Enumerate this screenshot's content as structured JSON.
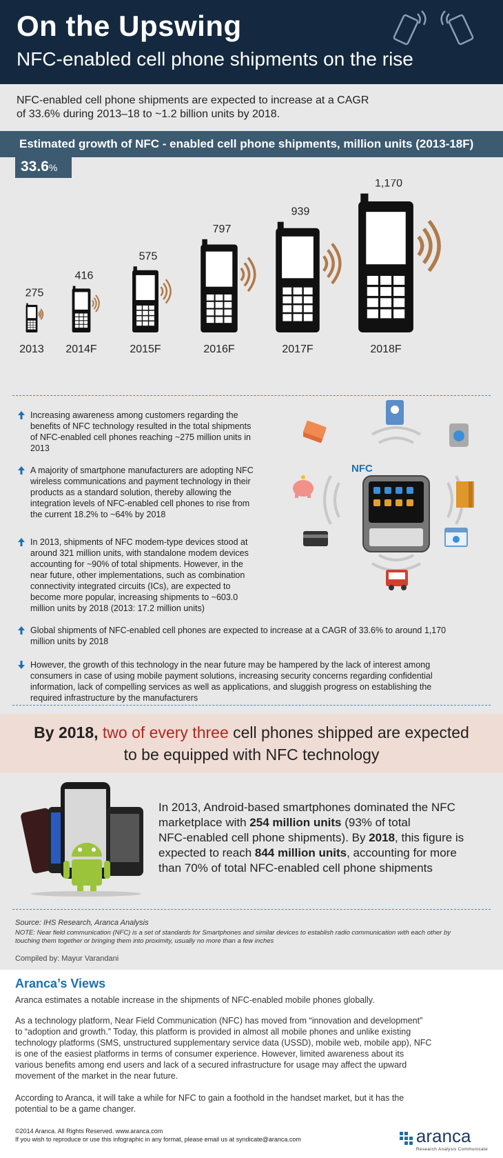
{
  "header": {
    "title": "On the Upswing",
    "subtitle": "NFC-enabled cell phone shipments on the rise"
  },
  "intro": {
    "line1": "NFC-enabled cell phone shipments are expected to increase at a CAGR",
    "line2": "of 33.6% during 2013–18 to ~1.2 billion units by 2018."
  },
  "chart_data": {
    "type": "bar",
    "title": "Estimated growth of NFC - enabled cell phone shipments, million units (2013-18F)",
    "categories": [
      "2013",
      "2014F",
      "2015F",
      "2016F",
      "2017F",
      "2018F"
    ],
    "values": [
      275,
      416,
      575,
      797,
      939,
      1170
    ],
    "value_labels": [
      "275",
      "416",
      "575",
      "797",
      "939",
      "1,170"
    ],
    "cagr_value": "33.6",
    "cagr_unit": "%",
    "ylim": [
      0,
      1170
    ]
  },
  "bullets": [
    {
      "direction": "up",
      "lines": [
        "Increasing awareness among customers regarding the",
        "benefits of NFC technology resulted in the total shipments",
        "of NFC-enabled cell phones reaching ~275 million units in",
        "2013"
      ]
    },
    {
      "direction": "up",
      "lines": [
        "A majority of smartphone manufacturers are adopting NFC",
        "wireless communications and payment technology in their",
        "products as a standard solution, thereby allowing the",
        "integration levels of NFC-enabled cell phones to rise from",
        "the current 18.2% to ~64% by 2018"
      ]
    },
    {
      "direction": "up",
      "lines": [
        "In 2013, shipments of NFC modem-type devices stood at",
        "around 321 million units, with standalone modem devices",
        "accounting for ~90% of total shipments. However, in the",
        "near future, other implementations, such as combination",
        "connectivity integrated circuits (ICs), are expected to",
        "become more popular, increasing shipments to ~603.0",
        "million units by 2018 (2013: 17.2 million units)"
      ]
    },
    {
      "direction": "up",
      "lines": [
        "Global shipments of NFC-enabled cell phones are expected to increase at a CAGR of 33.6% to around 1,170",
        "million units by 2018"
      ]
    },
    {
      "direction": "down",
      "lines": [
        "However, the growth of this technology in the near future may be hampered by the lack of interest among",
        "consumers in case of using mobile payment solutions, increasing security concerns regarding confidential",
        "information, lack of compelling services as well as applications, and sluggish progress on establishing the",
        "required infrastructure by the manufacturers"
      ]
    }
  ],
  "nfc_graphic": {
    "label": "NFC"
  },
  "callout": {
    "bold": "By 2018,",
    "red": "two of every three",
    "rest": "cell phones shipped are expected",
    "line2": "to be equipped with NFC technology"
  },
  "android": {
    "p1": "In 2013, Android-based smartphones dominated the NFC",
    "p2a": "marketplace with ",
    "p2b": "254 million units",
    "p2c": " (93% of total",
    "p3a": "NFC-enabled cell phone shipments). By ",
    "p3b": "2018",
    "p3c": ", this figure is",
    "p4a": "expected to reach ",
    "p4b": "844 million units",
    "p4c": ", accounting for more",
    "p5": "than 70% of total NFC-enabled cell phone shipments"
  },
  "source": {
    "text": "Source: IHS Research, Aranca Analysis",
    "note1": "NOTE: Near field communication (NFC) is a set of standards for Smartphones and similar devices to establish radio communication with each other by",
    "note2": "touching them together or bringing them into proximity, usually no more than a few inches",
    "compiled": "Compiled by: Mayur Varandani"
  },
  "views": {
    "title": "Aranca’s Views",
    "p1": "Aranca estimates a notable increase in the shipments of NFC-enabled mobile phones globally.",
    "p2": [
      "As a technology platform, Near Field Communication (NFC) has moved from “innovation and development”",
      "to “adoption and growth.” Today, this platform is provided in almost all mobile phones and unlike existing",
      "technology platforms (SMS, unstructured supplementary service data (USSD), mobile web, mobile app), NFC",
      "is one of the easiest platforms in terms of consumer experience. However, limited awareness about its",
      "various benefits among end users and lack of a secured infrastructure for usage may affect the upward",
      "movement of the market in the near future."
    ],
    "p3": [
      "According to Aranca, it will take a while for NFC to gain a foothold in the handset market, but it has the",
      "potential to be a game changer."
    ]
  },
  "footer": {
    "copyright": "©2014 Aranca. All Rights Reserved. www.aranca.com",
    "reproduce": "If you wish to reproduce or use this infographic in any format, please email us at syndicate@aranca.com",
    "logo": "aranca",
    "logo_sub": "Research Analysis Communicate"
  },
  "colors": {
    "header_bg": "#14293f",
    "chart_bar_bg": "#3c5a70",
    "callout_bg": "#efdcd4",
    "accent_red": "#b0281f",
    "accent_blue": "#1d6fb0",
    "wave_brown": "#b07a4a"
  }
}
